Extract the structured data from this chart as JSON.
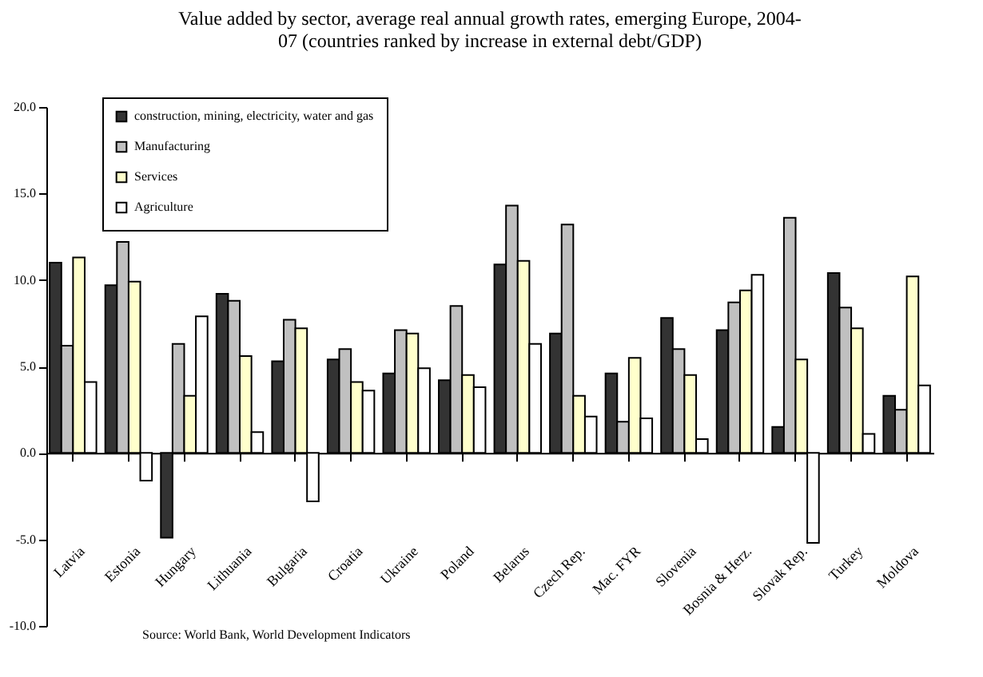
{
  "chart_data": {
    "type": "bar",
    "title": [
      "Value added by sector, average real annual growth rates, emerging Europe, 2004-",
      "07 (countries ranked by increase in external debt/GDP)"
    ],
    "categories": [
      "Latvia",
      "Estonia",
      "Hungary",
      "Lithuania",
      "Bulgaria",
      "Croatia",
      "Ukraine",
      "Poland",
      "Belarus",
      "Czech Rep.",
      "Mac. FYR",
      "Slovenia",
      "Bosnia & Herz.",
      "Slovak Rep.",
      "Turkey",
      "Moldova"
    ],
    "series": [
      {
        "name": "construction, mining, electricity, water and gas",
        "color": "#333333",
        "values": [
          11.0,
          9.7,
          -4.9,
          9.2,
          5.3,
          5.4,
          4.6,
          4.2,
          10.9,
          6.9,
          4.6,
          7.8,
          7.1,
          1.5,
          10.4,
          3.3
        ]
      },
      {
        "name": "Manufacturing",
        "color": "#c0c0c0",
        "values": [
          6.2,
          12.2,
          6.3,
          8.8,
          7.7,
          6.0,
          7.1,
          8.5,
          14.3,
          13.2,
          1.8,
          6.0,
          8.7,
          13.6,
          8.4,
          2.5
        ]
      },
      {
        "name": "Services",
        "color": "#ffffcc",
        "values": [
          11.3,
          9.9,
          3.3,
          5.6,
          7.2,
          4.1,
          6.9,
          4.5,
          11.1,
          3.3,
          5.5,
          4.5,
          9.4,
          5.4,
          7.2,
          10.2
        ]
      },
      {
        "name": "Agriculture",
        "color": "#ffffff",
        "values": [
          4.1,
          -1.6,
          7.9,
          1.2,
          -2.8,
          3.6,
          4.9,
          3.8,
          6.3,
          2.1,
          2.0,
          0.8,
          10.3,
          -5.2,
          1.1,
          3.9
        ]
      }
    ],
    "ylim": [
      -10,
      20
    ],
    "yticks": [
      {
        "value": -10,
        "label": "-10.0"
      },
      {
        "value": -5,
        "label": "-5.0"
      },
      {
        "value": 0,
        "label": "0.0"
      },
      {
        "value": 5,
        "label": "5.0"
      },
      {
        "value": 10,
        "label": "10.0"
      },
      {
        "value": 15,
        "label": "15.0"
      },
      {
        "value": 20,
        "label": "20.0"
      }
    ],
    "legend": "top left",
    "annotations": [
      "Source: World Bank, World Development Indicators"
    ]
  }
}
